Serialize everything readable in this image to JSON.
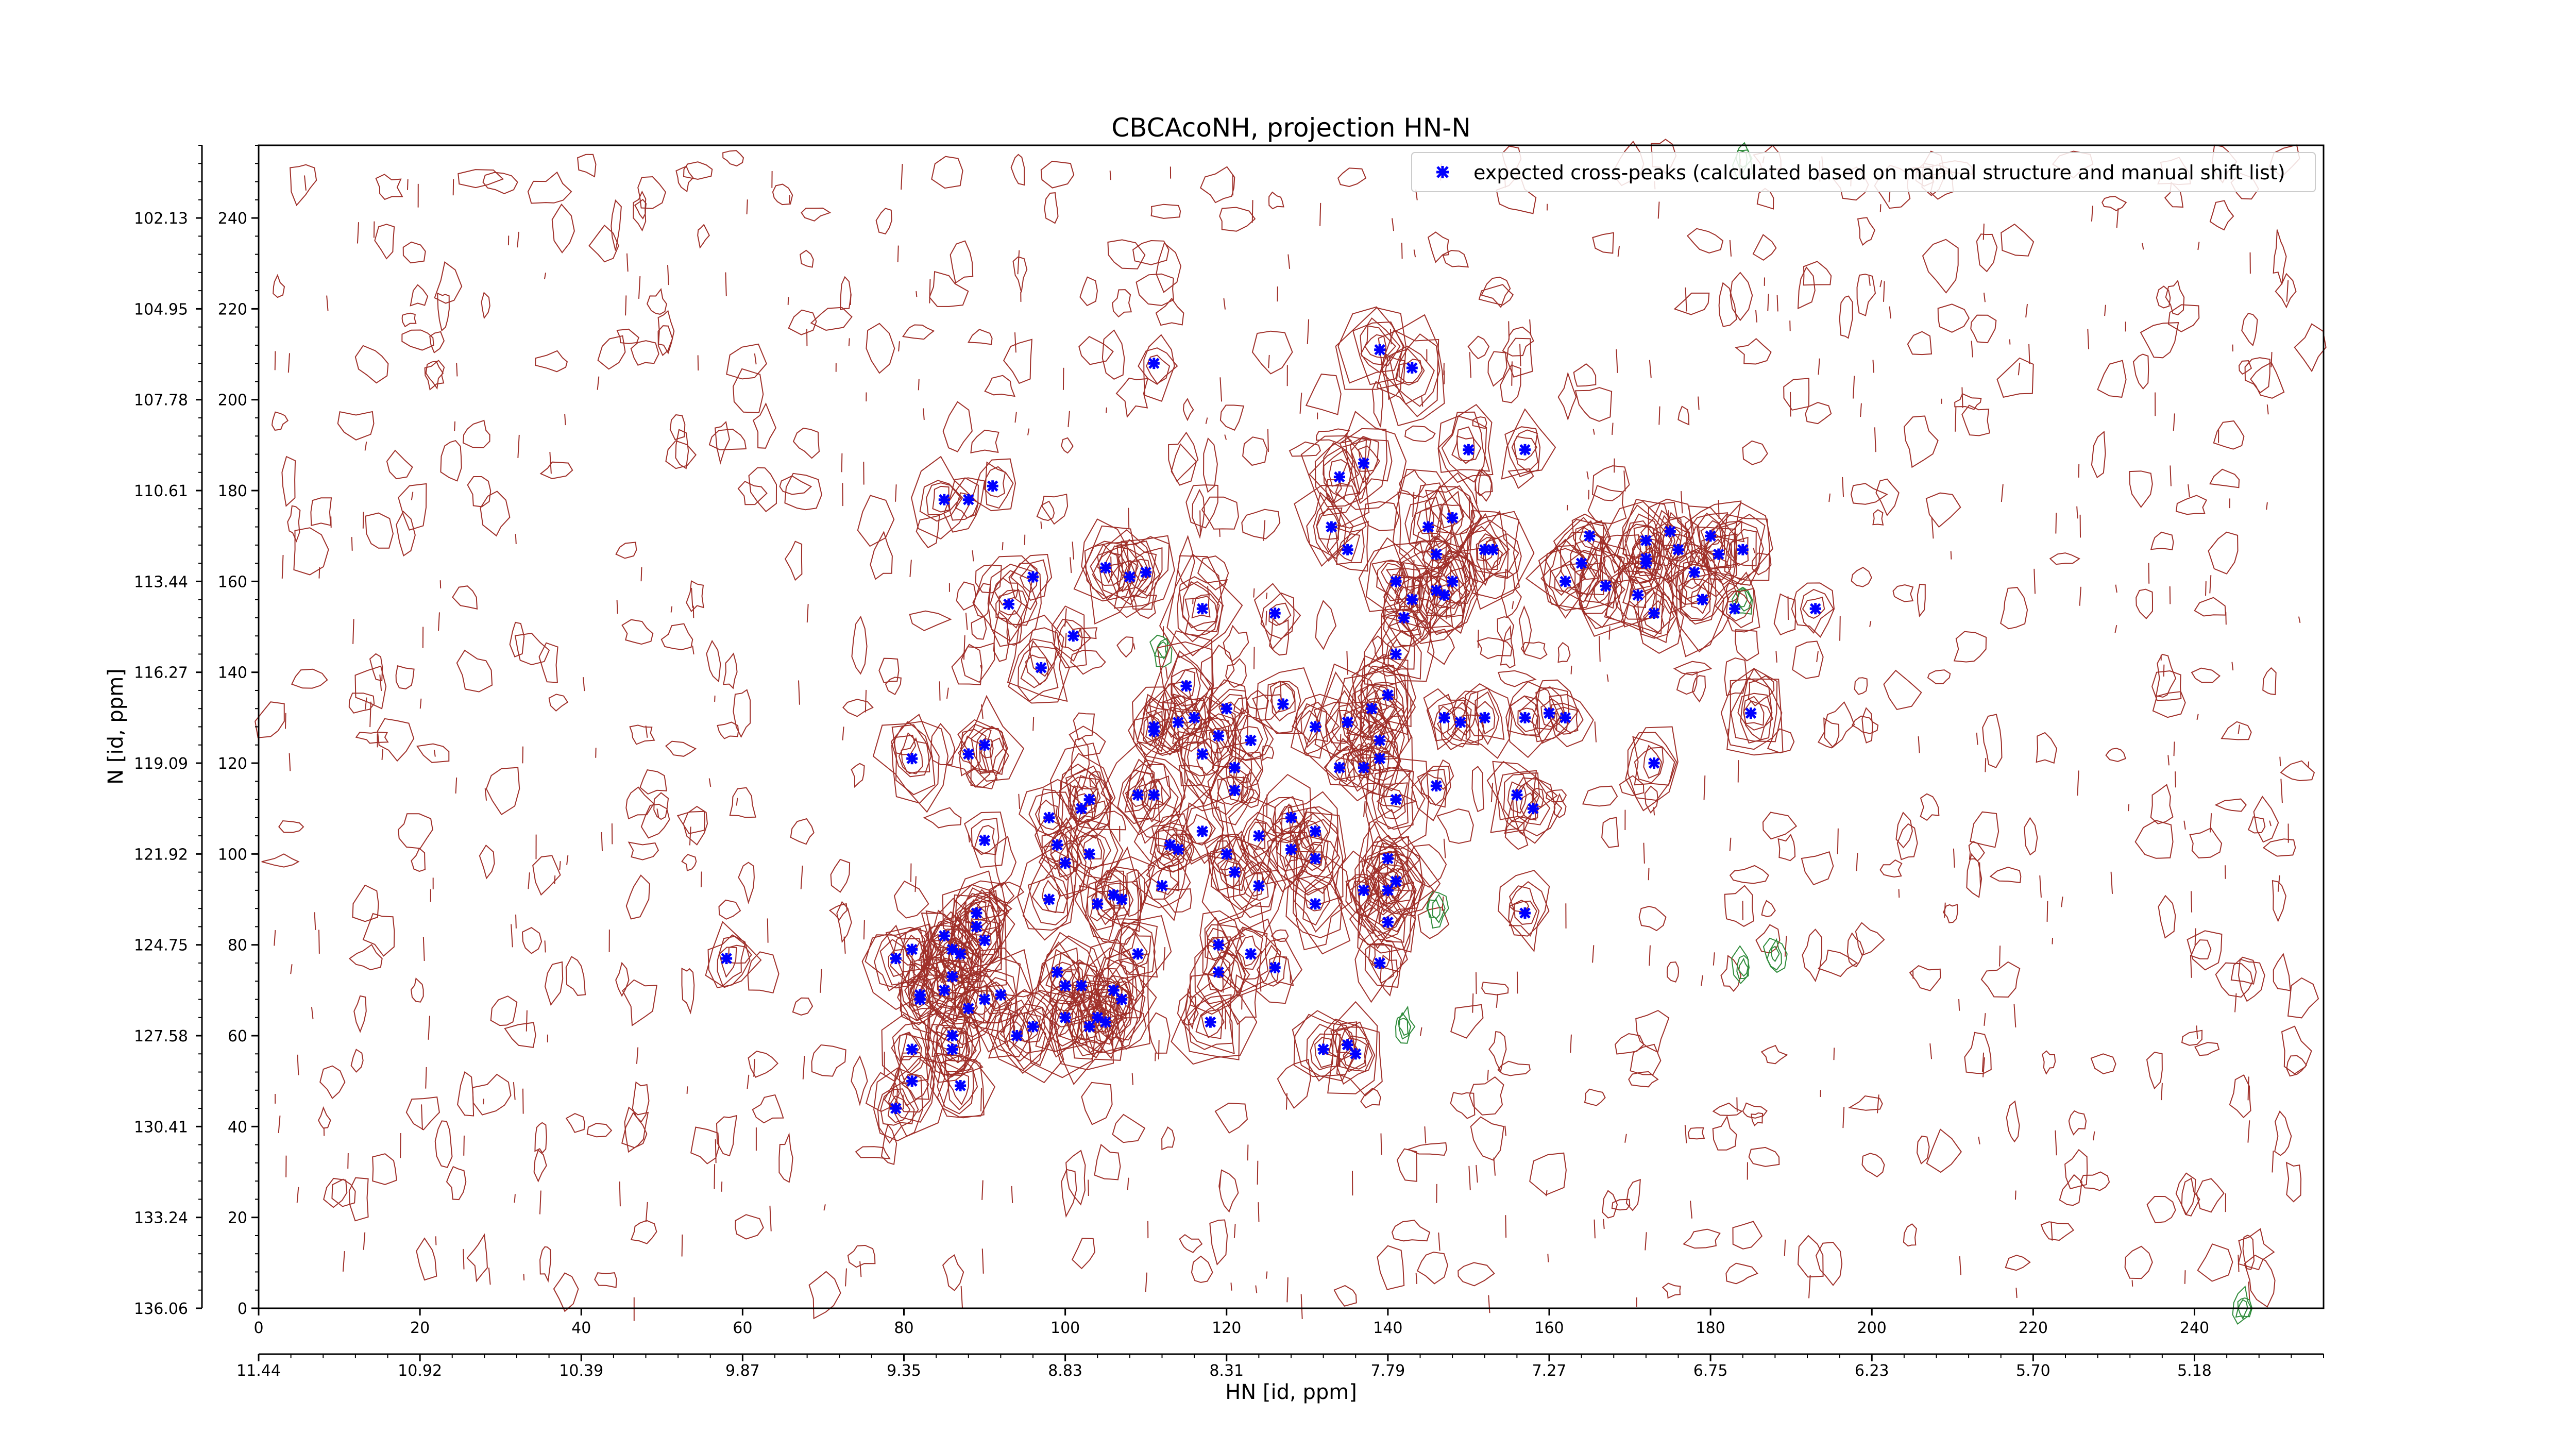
{
  "chart_data": {
    "type": "scatter",
    "title": "CBCAcoNH, projection HN-N",
    "xlabel": "HN [id, ppm]",
    "ylabel": "N [id, ppm]",
    "xlim": [
      0,
      256
    ],
    "ylim": [
      0,
      256
    ],
    "x_index_ticks": [
      "0",
      "20",
      "40",
      "60",
      "80",
      "100",
      "120",
      "140",
      "160",
      "180",
      "200",
      "220",
      "240"
    ],
    "x_ppm_ticks": [
      "11.44",
      "10.92",
      "10.39",
      "9.87",
      "9.35",
      "8.83",
      "8.31",
      "7.79",
      "7.27",
      "6.75",
      "6.23",
      "5.70",
      "5.18"
    ],
    "y_index_ticks": [
      "0",
      "20",
      "40",
      "60",
      "80",
      "100",
      "120",
      "140",
      "160",
      "180",
      "200",
      "220",
      "240"
    ],
    "y_ppm_ticks": [
      "136.06",
      "133.24",
      "130.41",
      "127.58",
      "124.75",
      "121.92",
      "119.09",
      "116.27",
      "113.44",
      "110.61",
      "107.78",
      "104.95",
      "102.13"
    ],
    "contour_positive_color": "#a0302a",
    "contour_negative_color": "#2e8b3a",
    "marker_color": "#0000ff",
    "legend": {
      "label": "expected cross-peaks (calculated based on manual structure and manual shift list)",
      "placement": "top-right"
    },
    "series": [
      {
        "name": "expected cross-peaks (calculated based on manual structure and manual shift list)",
        "points": [
          [
            111,
            208
          ],
          [
            139,
            211
          ],
          [
            143,
            207
          ],
          [
            150,
            189
          ],
          [
            157,
            189
          ],
          [
            145,
            172
          ],
          [
            165,
            170
          ],
          [
            172,
            169
          ],
          [
            175,
            171
          ],
          [
            172,
            165
          ],
          [
            176,
            167
          ],
          [
            181,
            166
          ],
          [
            180,
            170
          ],
          [
            184,
            167
          ],
          [
            172,
            164
          ],
          [
            178,
            162
          ],
          [
            171,
            157
          ],
          [
            167,
            159
          ],
          [
            162,
            160
          ],
          [
            164,
            164
          ],
          [
            179,
            156
          ],
          [
            183,
            154
          ],
          [
            173,
            153
          ],
          [
            148,
            174
          ],
          [
            146,
            166
          ],
          [
            152,
            167
          ],
          [
            153,
            167
          ],
          [
            148,
            160
          ],
          [
            146,
            158
          ],
          [
            147,
            157
          ],
          [
            143,
            156
          ],
          [
            142,
            152
          ],
          [
            141,
            160
          ],
          [
            135,
            167
          ],
          [
            134,
            183
          ],
          [
            137,
            186
          ],
          [
            133,
            172
          ],
          [
            126,
            153
          ],
          [
            117,
            154
          ],
          [
            108,
            161
          ],
          [
            105,
            163
          ],
          [
            110,
            162
          ],
          [
            93,
            155
          ],
          [
            96,
            161
          ],
          [
            88,
            178
          ],
          [
            91,
            181
          ],
          [
            85,
            178
          ],
          [
            101,
            148
          ],
          [
            97,
            141
          ],
          [
            115,
            137
          ],
          [
            111,
            128
          ],
          [
            111,
            127
          ],
          [
            114,
            129
          ],
          [
            116,
            130
          ],
          [
            120,
            132
          ],
          [
            123,
            125
          ],
          [
            127,
            133
          ],
          [
            131,
            128
          ],
          [
            135,
            129
          ],
          [
            138,
            132
          ],
          [
            140,
            135
          ],
          [
            141,
            144
          ],
          [
            139,
            125
          ],
          [
            139,
            121
          ],
          [
            137,
            119
          ],
          [
            134,
            119
          ],
          [
            147,
            130
          ],
          [
            149,
            129
          ],
          [
            152,
            130
          ],
          [
            160,
            131
          ],
          [
            162,
            130
          ],
          [
            157,
            130
          ],
          [
            173,
            120
          ],
          [
            185,
            131
          ],
          [
            193,
            154
          ],
          [
            158,
            110
          ],
          [
            157,
            87
          ],
          [
            156,
            113
          ],
          [
            146,
            115
          ],
          [
            141,
            112
          ],
          [
            141,
            94
          ],
          [
            137,
            92
          ],
          [
            131,
            89
          ],
          [
            128,
            101
          ],
          [
            128,
            108
          ],
          [
            131,
            105
          ],
          [
            140,
            99
          ],
          [
            131,
            99
          ],
          [
            124,
            104
          ],
          [
            124,
            93
          ],
          [
            121,
            114
          ],
          [
            121,
            119
          ],
          [
            117,
            122
          ],
          [
            119,
            126
          ],
          [
            111,
            113
          ],
          [
            109,
            113
          ],
          [
            113,
            102
          ],
          [
            117,
            105
          ],
          [
            114,
            101
          ],
          [
            120,
            100
          ],
          [
            121,
            96
          ],
          [
            112,
            93
          ],
          [
            107,
            90
          ],
          [
            106,
            91
          ],
          [
            104,
            89
          ],
          [
            103,
            100
          ],
          [
            102,
            110
          ],
          [
            103,
            112
          ],
          [
            98,
            108
          ],
          [
            99,
            102
          ],
          [
            100,
            98
          ],
          [
            98,
            90
          ],
          [
            90,
            103
          ],
          [
            88,
            122
          ],
          [
            90,
            124
          ],
          [
            81,
            121
          ],
          [
            81,
            79
          ],
          [
            87,
            78
          ],
          [
            90,
            81
          ],
          [
            89,
            84
          ],
          [
            89,
            87
          ],
          [
            85,
            82
          ],
          [
            86,
            79
          ],
          [
            86,
            73
          ],
          [
            85,
            70
          ],
          [
            82,
            69
          ],
          [
            82,
            68
          ],
          [
            88,
            66
          ],
          [
            94,
            60
          ],
          [
            86,
            60
          ],
          [
            86,
            57
          ],
          [
            81,
            57
          ],
          [
            90,
            68
          ],
          [
            92,
            69
          ],
          [
            99,
            74
          ],
          [
            100,
            71
          ],
          [
            102,
            71
          ],
          [
            100,
            64
          ],
          [
            104,
            64
          ],
          [
            105,
            63
          ],
          [
            103,
            62
          ],
          [
            96,
            62
          ],
          [
            87,
            49
          ],
          [
            79,
            44
          ],
          [
            81,
            50
          ],
          [
            58,
            77
          ],
          [
            79,
            77
          ],
          [
            109,
            78
          ],
          [
            126,
            75
          ],
          [
            123,
            78
          ],
          [
            119,
            74
          ],
          [
            119,
            80
          ],
          [
            139,
            76
          ],
          [
            140,
            85
          ],
          [
            140,
            92
          ],
          [
            135,
            58
          ],
          [
            136,
            56
          ],
          [
            132,
            57
          ],
          [
            118,
            63
          ],
          [
            107,
            68
          ],
          [
            106,
            70
          ]
        ]
      }
    ]
  }
}
